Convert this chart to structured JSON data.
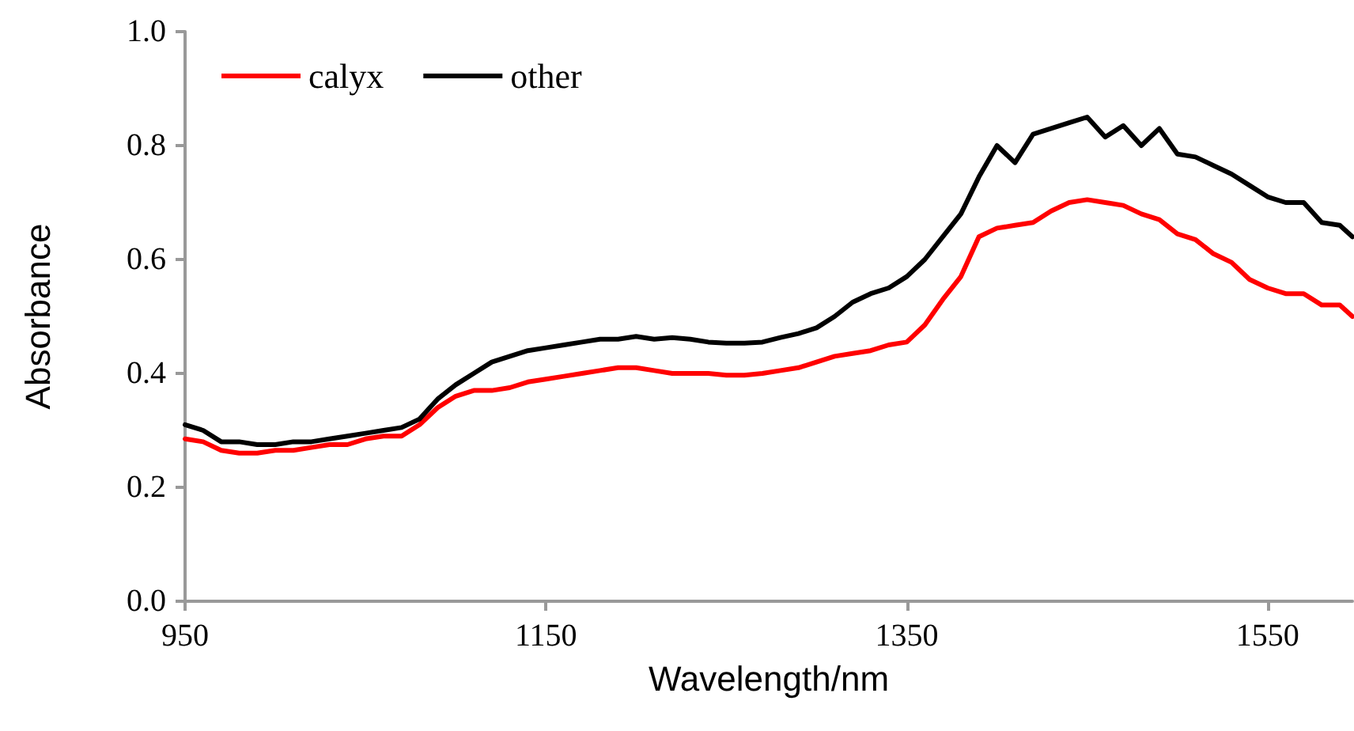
{
  "chart_data": {
    "type": "line",
    "xlabel": "Wavelength/nm",
    "ylabel": "Absorbance",
    "x": [
      950,
      960,
      970,
      980,
      990,
      1000,
      1010,
      1020,
      1030,
      1040,
      1050,
      1060,
      1070,
      1080,
      1090,
      1100,
      1110,
      1120,
      1130,
      1140,
      1150,
      1160,
      1170,
      1180,
      1190,
      1200,
      1210,
      1220,
      1230,
      1240,
      1250,
      1260,
      1270,
      1280,
      1290,
      1300,
      1310,
      1320,
      1330,
      1340,
      1350,
      1360,
      1370,
      1380,
      1390,
      1400,
      1410,
      1420,
      1430,
      1440,
      1450,
      1460,
      1470,
      1480,
      1490,
      1500,
      1510,
      1520,
      1530,
      1540,
      1550,
      1560,
      1570,
      1580,
      1590,
      1597
    ],
    "series": [
      {
        "name": "calyx",
        "color": "#ff0000",
        "values": [
          0.285,
          0.28,
          0.265,
          0.26,
          0.26,
          0.265,
          0.265,
          0.27,
          0.275,
          0.275,
          0.285,
          0.29,
          0.29,
          0.31,
          0.34,
          0.36,
          0.37,
          0.37,
          0.375,
          0.385,
          0.39,
          0.395,
          0.4,
          0.405,
          0.41,
          0.41,
          0.405,
          0.4,
          0.4,
          0.4,
          0.397,
          0.397,
          0.4,
          0.405,
          0.41,
          0.42,
          0.43,
          0.435,
          0.44,
          0.45,
          0.455,
          0.485,
          0.53,
          0.57,
          0.64,
          0.655,
          0.66,
          0.665,
          0.685,
          0.7,
          0.705,
          0.7,
          0.695,
          0.68,
          0.67,
          0.645,
          0.635,
          0.61,
          0.595,
          0.565,
          0.55,
          0.54,
          0.54,
          0.52,
          0.52,
          0.5
        ]
      },
      {
        "name": "other",
        "color": "#000000",
        "values": [
          0.31,
          0.3,
          0.28,
          0.28,
          0.275,
          0.275,
          0.28,
          0.28,
          0.285,
          0.29,
          0.295,
          0.3,
          0.305,
          0.32,
          0.355,
          0.38,
          0.4,
          0.42,
          0.43,
          0.44,
          0.445,
          0.45,
          0.455,
          0.46,
          0.46,
          0.465,
          0.46,
          0.463,
          0.46,
          0.455,
          0.453,
          0.453,
          0.455,
          0.463,
          0.47,
          0.48,
          0.5,
          0.525,
          0.54,
          0.55,
          0.57,
          0.6,
          0.64,
          0.68,
          0.745,
          0.8,
          0.77,
          0.82,
          0.83,
          0.84,
          0.85,
          0.815,
          0.835,
          0.8,
          0.83,
          0.785,
          0.78,
          0.765,
          0.75,
          0.73,
          0.71,
          0.7,
          0.7,
          0.665,
          0.66,
          0.64
        ]
      }
    ],
    "xlim": [
      950,
      1597
    ],
    "xticks": [
      950,
      1150,
      1350,
      1550
    ],
    "ylim": [
      0,
      1
    ],
    "yticks": [
      {
        "value": 0,
        "label": "0.0"
      },
      0.2,
      0.4,
      0.6,
      0.8,
      {
        "value": 1,
        "label": "1.0"
      }
    ],
    "grid": false,
    "legend": "top left",
    "marker": "none",
    "line_style": "solid"
  }
}
